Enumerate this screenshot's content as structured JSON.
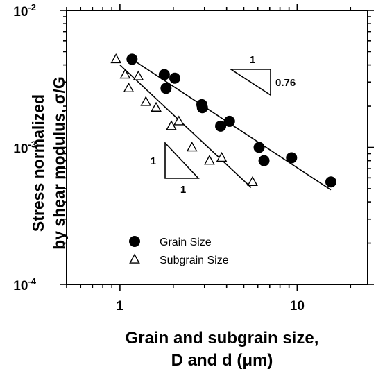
{
  "chart_data": {
    "type": "scatter",
    "xlabel_lines": [
      "Grain and subgrain size,",
      "D and d (μm)"
    ],
    "ylabel_lines": [
      "Stress normalized",
      "by shear modulus, σ/G"
    ],
    "xscale": "log",
    "yscale": "log",
    "xlim": [
      0.5,
      25
    ],
    "ylim": [
      0.0001,
      0.01
    ],
    "x_ticks": [
      {
        "value": 1,
        "label": "1"
      },
      {
        "value": 10,
        "label": "10"
      }
    ],
    "y_ticks": [
      {
        "value": 0.01,
        "base": "10",
        "exp": "-2"
      },
      {
        "value": 0.001,
        "base": "10",
        "exp": "-3"
      },
      {
        "value": 0.0001,
        "base": "10",
        "exp": "-4"
      }
    ],
    "grid": false,
    "legend": {
      "position": "bottom-left",
      "entries": [
        {
          "series": 0,
          "label": "Grain Size"
        },
        {
          "series": 1,
          "label": "Subgrain Size"
        }
      ]
    },
    "series": [
      {
        "name": "Grain Size",
        "marker": "filled-circle",
        "color": "#000000",
        "x": [
          1.17,
          1.78,
          1.82,
          2.04,
          2.9,
          2.92,
          3.7,
          4.15,
          6.1,
          6.5,
          9.3,
          15.5
        ],
        "y": [
          0.0044,
          0.0034,
          0.0027,
          0.0032,
          0.00205,
          0.00195,
          0.00143,
          0.00155,
          0.001,
          0.0008,
          0.00084,
          0.00056
        ],
        "fit": {
          "x": [
            1.17,
            15.5
          ],
          "y": [
            0.0044,
            0.00049
          ]
        }
      },
      {
        "name": "Subgrain Size",
        "marker": "open-triangle",
        "color": "#000000",
        "x": [
          0.95,
          1.07,
          1.12,
          1.27,
          1.4,
          1.6,
          1.95,
          2.15,
          2.55,
          3.2,
          3.75,
          5.6
        ],
        "y": [
          0.0044,
          0.0034,
          0.0027,
          0.0033,
          0.00215,
          0.00195,
          0.00143,
          0.00155,
          0.001,
          0.0008,
          0.00084,
          0.00056
        ],
        "fit": {
          "x": [
            1.0,
            5.5
          ],
          "y": [
            0.004,
            0.00051
          ]
        }
      }
    ],
    "annotations": [
      {
        "type": "slope-triangle",
        "run_label": "1",
        "rise_label": "0.76",
        "slope": -0.76
      },
      {
        "type": "slope-triangle",
        "run_label": "1",
        "rise_label": "1",
        "slope": -1
      }
    ]
  }
}
